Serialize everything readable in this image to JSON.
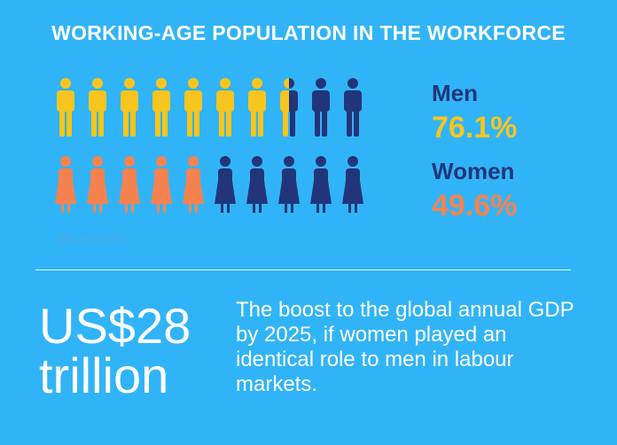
{
  "title": "WORKING-AGE POPULATION IN THE WORKFORCE",
  "colors": {
    "background": "#31b4f7",
    "men_active": "#f7c51f",
    "women_active": "#f4824f",
    "inactive": "#23357a",
    "note": "#5aa8d8"
  },
  "chart_data": {
    "type": "pictogram",
    "icons_per_row": 10,
    "series": [
      {
        "name": "Men",
        "value_percent": 76.1,
        "value_label": "76.1%",
        "icon": "man-icon",
        "filled_icons": 7.5
      },
      {
        "name": "Women",
        "value_percent": 49.6,
        "value_label": "49.6%",
        "icon": "woman-icon",
        "filled_icons": 5
      }
    ]
  },
  "note": "Data as of 2015",
  "highlight": {
    "amount": "US$28",
    "unit": "trillion",
    "description": "The boost to the global annual GDP by 2025, if women played an identical role to men in labour markets."
  }
}
